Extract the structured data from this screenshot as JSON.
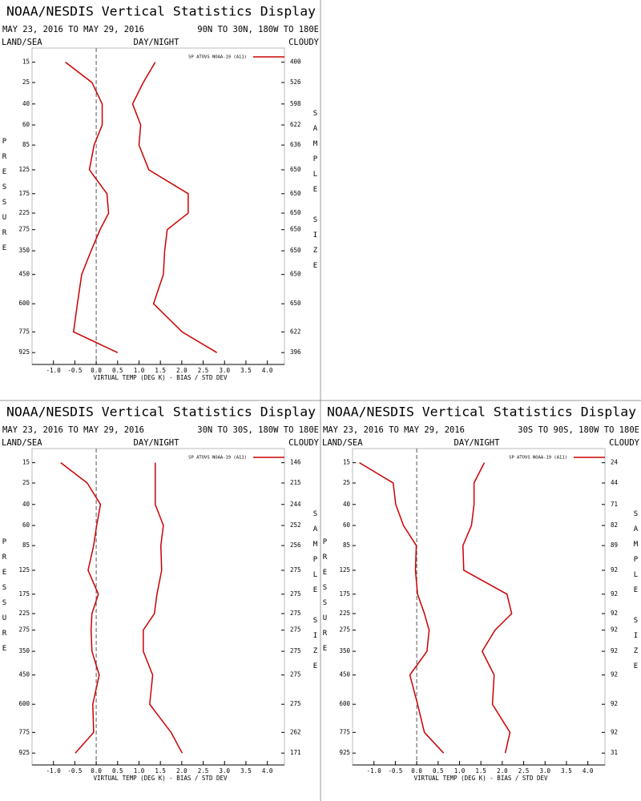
{
  "chart_data": [
    {
      "type": "line",
      "title": "NOAA/NESDIS Vertical Statistics Display",
      "subtitle": "MAY 23, 2016 TO MAY 29, 2016",
      "region": "90N TO 30N, 180W TO 180E",
      "header_labels": [
        "LAND/SEA",
        "DAY/NIGHT",
        "CLOUDY"
      ],
      "ylabel": "PRESSURE",
      "y2label": "SAMPLE SIZE",
      "xlabel": "VIRTUAL TEMP (DEG K) - BIAS / STD DEV",
      "y": [
        15,
        25,
        40,
        60,
        85,
        125,
        175,
        225,
        275,
        350,
        450,
        600,
        775,
        925
      ],
      "ylim": [
        10,
        1000
      ],
      "yticks": [
        15,
        25,
        40,
        60,
        85,
        125,
        175,
        225,
        275,
        350,
        450,
        600,
        775,
        925
      ],
      "y_exponent": 0.286,
      "xlim": [
        -1.5,
        4.4
      ],
      "xticks": [
        {
          "value": -1,
          "label": "-1.0"
        },
        -0.5,
        {
          "value": 0,
          "label": "0.0"
        },
        0.5,
        {
          "value": 1,
          "label": "1.0"
        },
        1.5,
        {
          "value": 2,
          "label": "2.0"
        },
        2.5,
        {
          "value": 3,
          "label": "3.0"
        },
        3.5,
        {
          "value": 4,
          "label": "4.0"
        }
      ],
      "sample_size": [
        400,
        526,
        598,
        622,
        636,
        650,
        650,
        650,
        650,
        650,
        650,
        650,
        622,
        396
      ],
      "series": [
        {
          "name": "SP ATOVS NOAA-19 (A11)",
          "color": "#cc0000",
          "values": [
            -0.72,
            -0.1,
            0.14,
            0.14,
            -0.05,
            -0.16,
            0.25,
            0.29,
            0.09,
            -0.12,
            -0.34,
            -0.44,
            -0.53,
            0.5
          ]
        },
        {
          "color": "#cc0000",
          "values": [
            1.38,
            1.1,
            0.85,
            1.04,
            1.0,
            1.23,
            2.15,
            2.15,
            1.66,
            1.6,
            1.57,
            1.34,
            2.01,
            2.82
          ]
        }
      ]
    },
    {
      "type": "line",
      "title": "NOAA/NESDIS Vertical Statistics Display",
      "subtitle": "MAY 23, 2016 TO MAY 29, 2016",
      "region": "30N TO 30S, 180W TO 180E",
      "header_labels": [
        "LAND/SEA",
        "DAY/NIGHT",
        "CLOUDY"
      ],
      "ylabel": "PRESSURE",
      "y2label": "SAMPLE SIZE",
      "xlabel": "VIRTUAL TEMP (DEG K) - BIAS / STD DEV",
      "y": [
        15,
        25,
        40,
        60,
        85,
        125,
        175,
        225,
        275,
        350,
        450,
        600,
        775,
        925
      ],
      "ylim": [
        10,
        1000
      ],
      "yticks": [
        15,
        25,
        40,
        60,
        85,
        125,
        175,
        225,
        275,
        350,
        450,
        600,
        775,
        925
      ],
      "y_exponent": 0.286,
      "xlim": [
        -1.5,
        4.4
      ],
      "xticks": [
        {
          "value": -1,
          "label": "-1.0"
        },
        -0.5,
        {
          "value": 0,
          "label": "0.0"
        },
        0.5,
        {
          "value": 1,
          "label": "1.0"
        },
        1.5,
        {
          "value": 2,
          "label": "2.0"
        },
        2.5,
        {
          "value": 3,
          "label": "3.0"
        },
        3.5,
        {
          "value": 4,
          "label": "4.0"
        }
      ],
      "sample_size": [
        146,
        215,
        244,
        252,
        256,
        275,
        275,
        275,
        275,
        275,
        275,
        275,
        262,
        171
      ],
      "series": [
        {
          "name": "SP ATOVS NOAA-19 (A11)",
          "color": "#cc0000",
          "values": [
            -0.83,
            -0.21,
            0.1,
            0.01,
            -0.06,
            -0.19,
            0.05,
            -0.1,
            -0.12,
            -0.1,
            0.07,
            -0.08,
            -0.06,
            -0.49
          ]
        },
        {
          "color": "#cc0000",
          "values": [
            1.38,
            1.38,
            1.38,
            1.57,
            1.51,
            1.53,
            1.42,
            1.36,
            1.1,
            1.1,
            1.32,
            1.25,
            1.75,
            2.01
          ]
        }
      ]
    },
    {
      "type": "line",
      "title": "NOAA/NESDIS Vertical Statistics Display",
      "subtitle": "MAY 23, 2016 TO MAY 29, 2016",
      "region": "30S TO 90S, 180W TO 180E",
      "header_labels": [
        "LAND/SEA",
        "DAY/NIGHT",
        "CLOUDY"
      ],
      "ylabel": "PRESSURE",
      "y2label": "SAMPLE SIZE",
      "xlabel": "VIRTUAL TEMP (DEG K) - BIAS / STD DEV",
      "y": [
        15,
        25,
        40,
        60,
        85,
        125,
        175,
        225,
        275,
        350,
        450,
        600,
        775,
        925
      ],
      "ylim": [
        10,
        1000
      ],
      "yticks": [
        15,
        25,
        40,
        60,
        85,
        125,
        175,
        225,
        275,
        350,
        450,
        600,
        775,
        925
      ],
      "y_exponent": 0.286,
      "xlim": [
        -1.5,
        4.4
      ],
      "xticks": [
        {
          "value": -1,
          "label": "-1.0"
        },
        -0.5,
        {
          "value": 0,
          "label": "0.0"
        },
        0.5,
        {
          "value": 1,
          "label": "1.0"
        },
        1.5,
        {
          "value": 2,
          "label": "2.0"
        },
        2.5,
        {
          "value": 3,
          "label": "3.0"
        },
        3.5,
        {
          "value": 4,
          "label": "4.0"
        }
      ],
      "sample_size": [
        24,
        44,
        71,
        82,
        89,
        92,
        92,
        92,
        92,
        92,
        92,
        92,
        92,
        31
      ],
      "series": [
        {
          "name": "SP ATOVS NOAA-19 (A11)",
          "color": "#cc0000",
          "values": [
            -1.34,
            -0.55,
            -0.49,
            -0.31,
            -0.01,
            -0.03,
            0.02,
            0.18,
            0.29,
            0.24,
            -0.16,
            0.02,
            0.18,
            0.63
          ]
        },
        {
          "color": "#cc0000",
          "values": [
            1.58,
            1.34,
            1.34,
            1.28,
            1.08,
            1.1,
            2.11,
            2.22,
            1.83,
            1.53,
            1.81,
            1.77,
            2.18,
            2.07
          ]
        }
      ]
    }
  ]
}
